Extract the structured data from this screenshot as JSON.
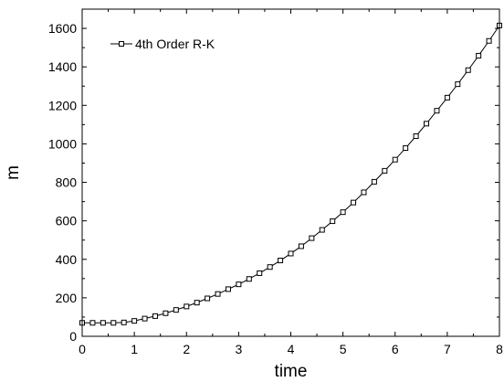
{
  "chart_data": {
    "type": "line",
    "xlabel": "time",
    "ylabel": "m",
    "xlim": [
      0,
      8
    ],
    "ylim": [
      0,
      1700
    ],
    "x_ticks": [
      0,
      1,
      2,
      3,
      4,
      5,
      6,
      7,
      8
    ],
    "y_ticks": [
      0,
      200,
      400,
      600,
      800,
      1000,
      1200,
      1400,
      1600
    ],
    "grid": false,
    "legend_position": "top-left",
    "series": [
      {
        "name": "4th Order R-K",
        "marker": "square",
        "x": [
          0,
          0.2,
          0.4,
          0.6,
          0.8,
          1.0,
          1.2,
          1.4,
          1.6,
          1.8,
          2.0,
          2.2,
          2.4,
          2.6,
          2.8,
          3.0,
          3.2,
          3.4,
          3.6,
          3.8,
          4.0,
          4.2,
          4.4,
          4.6,
          4.8,
          5.0,
          5.2,
          5.4,
          5.6,
          5.8,
          6.0,
          6.2,
          6.4,
          6.6,
          6.8,
          7.0,
          7.2,
          7.4,
          7.6,
          7.8,
          8.0
        ],
        "y": [
          70,
          70,
          70,
          70,
          72,
          80,
          92,
          105,
          120,
          137,
          155,
          175,
          197,
          220,
          245,
          270,
          298,
          328,
          360,
          394,
          430,
          468,
          510,
          553,
          598,
          645,
          695,
          748,
          803,
          860,
          918,
          978,
          1040,
          1105,
          1172,
          1240,
          1310,
          1383,
          1458,
          1535,
          1615
        ]
      }
    ]
  }
}
